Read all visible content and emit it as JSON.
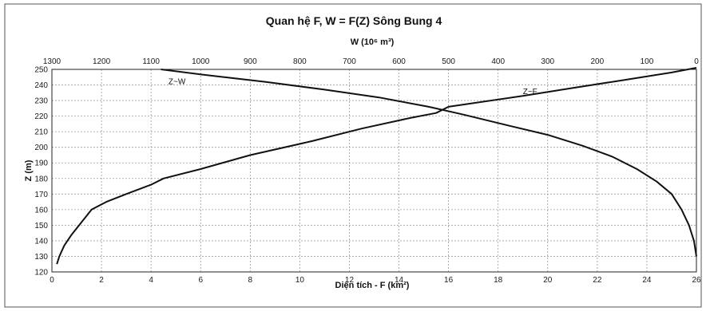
{
  "chart_data": {
    "type": "line",
    "title": "Quan hệ F, W = F(Z) Sông Bung 4",
    "top_axis_label": "W (10⁶ m³)",
    "xlabel": "Diện tích - F (km²)",
    "ylabel": "Z (m)",
    "xlim": [
      0,
      26
    ],
    "x_ticks": [
      0,
      2,
      4,
      6,
      8,
      10,
      12,
      14,
      16,
      18,
      20,
      22,
      24,
      26
    ],
    "top_xlim": [
      1300,
      0
    ],
    "top_ticks": [
      1300,
      1200,
      1100,
      1000,
      900,
      800,
      700,
      600,
      500,
      400,
      300,
      200,
      100,
      0
    ],
    "ylim": [
      120,
      250
    ],
    "y_ticks": [
      120,
      130,
      140,
      150,
      160,
      170,
      180,
      190,
      200,
      210,
      220,
      230,
      240,
      250
    ],
    "grid": true,
    "series": [
      {
        "name": "Z~F",
        "axis": "bottom",
        "x": [
          0.2,
          0.3,
          0.5,
          0.8,
          1.2,
          1.6,
          2.2,
          3.0,
          4.0,
          4.5,
          6.0,
          8.0,
          10.5,
          12.5,
          14.5,
          15.5,
          16.0,
          19.0,
          21.0,
          23.0,
          25.0,
          26.0
        ],
        "y": [
          125,
          130,
          137,
          144,
          152,
          160,
          165,
          170,
          176,
          180,
          186,
          195,
          204,
          212,
          219,
          222,
          226,
          233,
          238,
          243,
          248,
          251
        ]
      },
      {
        "name": "Z~W",
        "axis": "top",
        "x": [
          0,
          5,
          15,
          30,
          50,
          80,
          120,
          170,
          230,
          300,
          380,
          470,
          540,
          640,
          750,
          870,
          980,
          1080
        ],
        "y": [
          130,
          140,
          150,
          160,
          170,
          178,
          186,
          194,
          201,
          208,
          214,
          221,
          226,
          232,
          237,
          242,
          246,
          250
        ]
      }
    ]
  }
}
